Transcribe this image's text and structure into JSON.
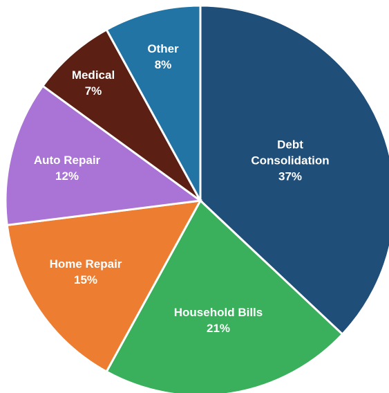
{
  "chart_data": {
    "type": "pie",
    "categories": [
      "Debt Consolidation",
      "Household Bills",
      "Home Repair",
      "Auto Repair",
      "Medical",
      "Other"
    ],
    "values": [
      37,
      21,
      15,
      12,
      7,
      8
    ],
    "value_labels": [
      "37%",
      "21%",
      "15%",
      "12%",
      "7%",
      "8%"
    ],
    "colors": [
      "#1f4e79",
      "#3aaf5c",
      "#ed7d31",
      "#a974d6",
      "#5c1f14",
      "#2274a5"
    ]
  }
}
